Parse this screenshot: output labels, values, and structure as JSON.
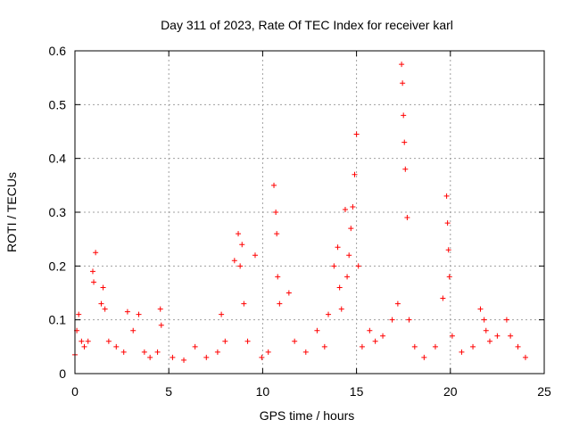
{
  "chart_data": {
    "type": "scatter",
    "title": "Day 311 of 2023, Rate Of TEC Index for receiver karl",
    "xlabel": "GPS time / hours",
    "ylabel": "ROTI / TECUs",
    "xlim": [
      0,
      25
    ],
    "ylim": [
      0,
      0.6
    ],
    "x_ticks": [
      0,
      5,
      10,
      15,
      20,
      25
    ],
    "x_tick_labels": [
      "0",
      "5",
      "10",
      "15",
      "20",
      "25"
    ],
    "y_ticks": [
      0,
      0.1,
      0.2,
      0.3,
      0.4,
      0.5,
      0.6
    ],
    "y_tick_labels": [
      "0",
      "0.1",
      "0.2",
      "0.3",
      "0.4",
      "0.5",
      "0.6"
    ],
    "grid": true,
    "marker": "+",
    "color": "#ff0000",
    "series": [
      {
        "name": "ROTI",
        "x": [
          0.0,
          0.1,
          0.2,
          0.35,
          0.5,
          0.7,
          0.95,
          1.0,
          1.1,
          1.4,
          1.5,
          1.6,
          1.8,
          2.2,
          2.6,
          2.8,
          3.1,
          3.4,
          3.7,
          4.0,
          4.4,
          4.55,
          4.6,
          5.2,
          5.8,
          6.4,
          7.0,
          7.6,
          7.8,
          8.0,
          8.5,
          8.7,
          8.8,
          8.9,
          9.0,
          9.2,
          9.6,
          9.95,
          10.3,
          10.6,
          10.7,
          10.75,
          10.8,
          10.9,
          11.4,
          11.7,
          12.3,
          12.9,
          13.3,
          13.5,
          13.8,
          14.0,
          14.1,
          14.2,
          14.4,
          14.5,
          14.6,
          14.7,
          14.8,
          14.9,
          15.0,
          15.1,
          15.3,
          15.7,
          16.0,
          16.4,
          16.9,
          17.2,
          17.4,
          17.45,
          17.5,
          17.55,
          17.6,
          17.7,
          17.8,
          18.1,
          18.6,
          19.2,
          19.6,
          19.8,
          19.85,
          19.9,
          19.95,
          20.1,
          20.6,
          21.2,
          21.6,
          21.8,
          21.9,
          22.1,
          22.5,
          23.0,
          23.2,
          23.6,
          24.0
        ],
        "y": [
          0.035,
          0.08,
          0.11,
          0.06,
          0.05,
          0.06,
          0.19,
          0.17,
          0.225,
          0.13,
          0.16,
          0.12,
          0.06,
          0.05,
          0.04,
          0.115,
          0.08,
          0.11,
          0.04,
          0.03,
          0.04,
          0.12,
          0.09,
          0.03,
          0.025,
          0.05,
          0.03,
          0.04,
          0.11,
          0.06,
          0.21,
          0.26,
          0.2,
          0.24,
          0.13,
          0.06,
          0.22,
          0.03,
          0.04,
          0.35,
          0.3,
          0.26,
          0.18,
          0.13,
          0.15,
          0.06,
          0.04,
          0.08,
          0.05,
          0.11,
          0.2,
          0.235,
          0.16,
          0.12,
          0.305,
          0.18,
          0.22,
          0.27,
          0.31,
          0.37,
          0.445,
          0.2,
          0.05,
          0.08,
          0.06,
          0.07,
          0.1,
          0.13,
          0.575,
          0.54,
          0.48,
          0.43,
          0.38,
          0.29,
          0.1,
          0.05,
          0.03,
          0.05,
          0.14,
          0.33,
          0.28,
          0.23,
          0.18,
          0.07,
          0.04,
          0.05,
          0.12,
          0.1,
          0.08,
          0.06,
          0.07,
          0.1,
          0.07,
          0.05,
          0.03
        ]
      }
    ]
  }
}
